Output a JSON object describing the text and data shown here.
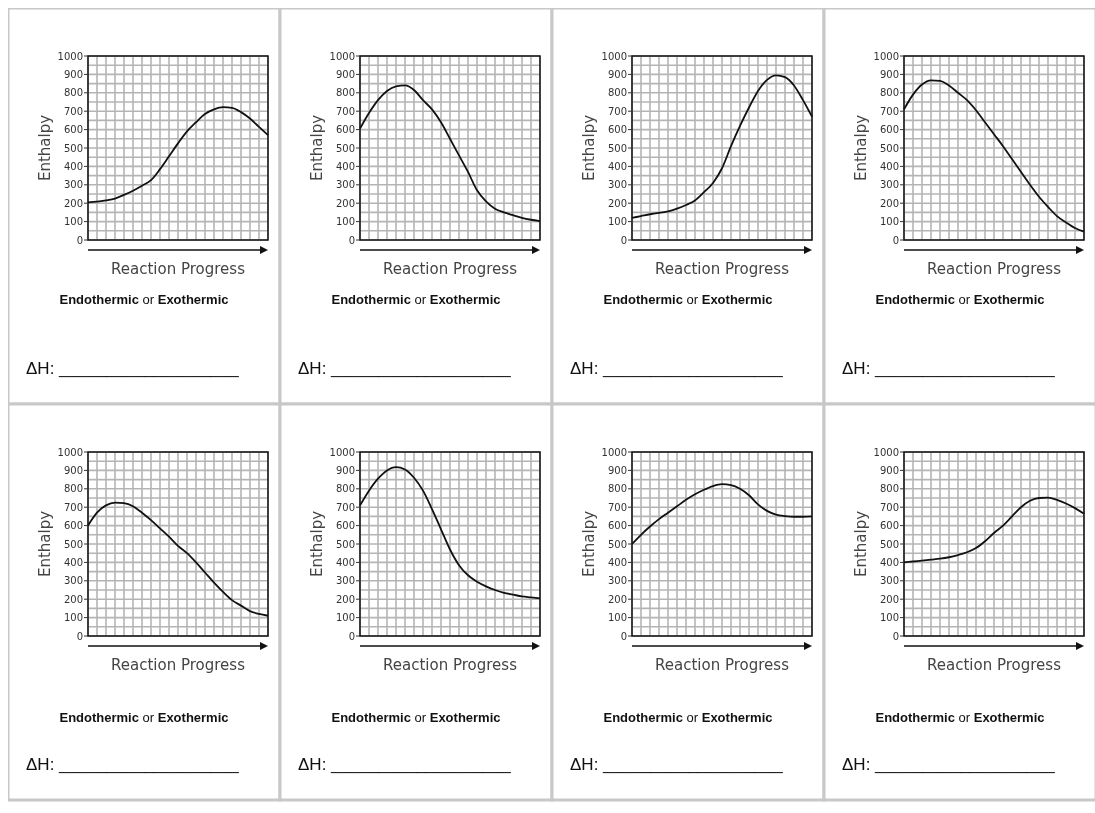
{
  "chart_data": [
    {
      "type": "line",
      "ylabel": "Enthalpy",
      "xlabel": "Reaction Progress",
      "categories": [
        null,
        null,
        null,
        null,
        null,
        null,
        null,
        null,
        null,
        null,
        null,
        null,
        null,
        null,
        null,
        null,
        null,
        null,
        null,
        null,
        null
      ],
      "values": [
        205,
        208,
        215,
        225,
        245,
        268,
        295,
        325,
        385,
        455,
        525,
        590,
        640,
        685,
        710,
        722,
        718,
        695,
        660,
        615,
        570
      ],
      "color": "#111111",
      "ylim": [
        0,
        1000
      ],
      "yticks": [
        0,
        100,
        200,
        300,
        400,
        500,
        600,
        700,
        800,
        900,
        1000
      ],
      "grid": true,
      "marker": "none",
      "annotations": [
        "Endothermic or Exothermic",
        "ΔH: ___________________"
      ]
    },
    {
      "type": "line",
      "ylabel": "Enthalpy",
      "xlabel": "Reaction Progress",
      "categories": [
        null,
        null,
        null,
        null,
        null,
        null,
        null,
        null,
        null,
        null,
        null,
        null,
        null,
        null,
        null,
        null,
        null,
        null,
        null,
        null,
        null
      ],
      "values": [
        605,
        690,
        760,
        810,
        835,
        840,
        815,
        760,
        710,
        640,
        550,
        460,
        370,
        270,
        210,
        170,
        150,
        135,
        120,
        110,
        103
      ],
      "color": "#111111",
      "ylim": [
        0,
        1000
      ],
      "yticks": [
        0,
        100,
        200,
        300,
        400,
        500,
        600,
        700,
        800,
        900,
        1000
      ],
      "grid": true,
      "marker": "none",
      "annotations": [
        "Endothermic or Exothermic",
        "ΔH: ___________________"
      ]
    },
    {
      "type": "line",
      "ylabel": "Enthalpy",
      "xlabel": "Reaction Progress",
      "categories": [
        null,
        null,
        null,
        null,
        null,
        null,
        null,
        null,
        null,
        null,
        null,
        null,
        null,
        null,
        null,
        null,
        null,
        null,
        null,
        null,
        null
      ],
      "values": [
        120,
        130,
        140,
        148,
        155,
        170,
        190,
        215,
        260,
        310,
        390,
        510,
        620,
        720,
        810,
        870,
        895,
        885,
        840,
        760,
        670
      ],
      "color": "#111111",
      "ylim": [
        0,
        1000
      ],
      "yticks": [
        0,
        100,
        200,
        300,
        400,
        500,
        600,
        700,
        800,
        900,
        1000
      ],
      "grid": true,
      "marker": "none",
      "annotations": [
        "Endothermic or Exothermic",
        "ΔH: ___________________"
      ]
    },
    {
      "type": "line",
      "ylabel": "Enthalpy",
      "xlabel": "Reaction Progress",
      "categories": [
        null,
        null,
        null,
        null,
        null,
        null,
        null,
        null,
        null,
        null,
        null,
        null,
        null,
        null,
        null,
        null,
        null,
        null,
        null,
        null,
        null
      ],
      "values": [
        710,
        790,
        845,
        868,
        865,
        840,
        800,
        760,
        705,
        640,
        575,
        510,
        440,
        370,
        300,
        235,
        180,
        130,
        95,
        65,
        45
      ],
      "color": "#111111",
      "ylim": [
        0,
        1000
      ],
      "yticks": [
        0,
        100,
        200,
        300,
        400,
        500,
        600,
        700,
        800,
        900,
        1000
      ],
      "grid": true,
      "marker": "none",
      "annotations": [
        "Endothermic or Exothermic",
        "ΔH: ___________________"
      ]
    },
    {
      "type": "line",
      "ylabel": "Enthalpy",
      "xlabel": "Reaction Progress",
      "categories": [
        null,
        null,
        null,
        null,
        null,
        null,
        null,
        null,
        null,
        null,
        null,
        null,
        null,
        null,
        null,
        null,
        null,
        null,
        null,
        null,
        null
      ],
      "values": [
        600,
        670,
        710,
        725,
        722,
        705,
        670,
        630,
        585,
        540,
        490,
        450,
        400,
        345,
        290,
        240,
        195,
        165,
        135,
        120,
        110
      ],
      "color": "#111111",
      "ylim": [
        0,
        1000
      ],
      "yticks": [
        0,
        100,
        200,
        300,
        400,
        500,
        600,
        700,
        800,
        900,
        1000
      ],
      "grid": true,
      "marker": "none",
      "annotations": [
        "Endothermic or Exothermic",
        "ΔH: ___________________"
      ]
    },
    {
      "type": "line",
      "ylabel": "Enthalpy",
      "xlabel": "Reaction Progress",
      "categories": [
        null,
        null,
        null,
        null,
        null,
        null,
        null,
        null,
        null,
        null,
        null,
        null,
        null,
        null,
        null,
        null,
        null,
        null,
        null,
        null,
        null
      ],
      "values": [
        710,
        790,
        855,
        900,
        918,
        905,
        860,
        790,
        690,
        580,
        470,
        385,
        330,
        295,
        270,
        250,
        235,
        225,
        215,
        210,
        205
      ],
      "color": "#111111",
      "ylim": [
        0,
        1000
      ],
      "yticks": [
        0,
        100,
        200,
        300,
        400,
        500,
        600,
        700,
        800,
        900,
        1000
      ],
      "grid": true,
      "marker": "none",
      "annotations": [
        "Endothermic or Exothermic",
        "ΔH: ___________________"
      ]
    },
    {
      "type": "line",
      "ylabel": "Enthalpy",
      "xlabel": "Reaction Progress",
      "categories": [
        null,
        null,
        null,
        null,
        null,
        null,
        null,
        null,
        null,
        null,
        null,
        null,
        null,
        null,
        null,
        null,
        null,
        null,
        null,
        null,
        null
      ],
      "values": [
        500,
        550,
        595,
        635,
        670,
        705,
        740,
        770,
        795,
        815,
        825,
        820,
        800,
        765,
        715,
        680,
        660,
        652,
        648,
        648,
        650
      ],
      "color": "#111111",
      "ylim": [
        0,
        1000
      ],
      "yticks": [
        0,
        100,
        200,
        300,
        400,
        500,
        600,
        700,
        800,
        900,
        1000
      ],
      "grid": true,
      "marker": "none",
      "annotations": [
        "Endothermic or Exothermic",
        "ΔH: ___________________"
      ]
    },
    {
      "type": "line",
      "ylabel": "Enthalpy",
      "xlabel": "Reaction Progress",
      "categories": [
        null,
        null,
        null,
        null,
        null,
        null,
        null,
        null,
        null,
        null,
        null,
        null,
        null,
        null,
        null,
        null,
        null,
        null,
        null,
        null,
        null
      ],
      "values": [
        400,
        405,
        410,
        415,
        420,
        428,
        440,
        455,
        478,
        515,
        560,
        600,
        650,
        700,
        735,
        750,
        752,
        740,
        720,
        695,
        665
      ],
      "color": "#111111",
      "ylim": [
        0,
        1000
      ],
      "yticks": [
        0,
        100,
        200,
        300,
        400,
        500,
        600,
        700,
        800,
        900,
        1000
      ],
      "grid": true,
      "marker": "none",
      "annotations": [
        "Endothermic or Exothermic",
        "ΔH: ___________________"
      ]
    }
  ]
}
